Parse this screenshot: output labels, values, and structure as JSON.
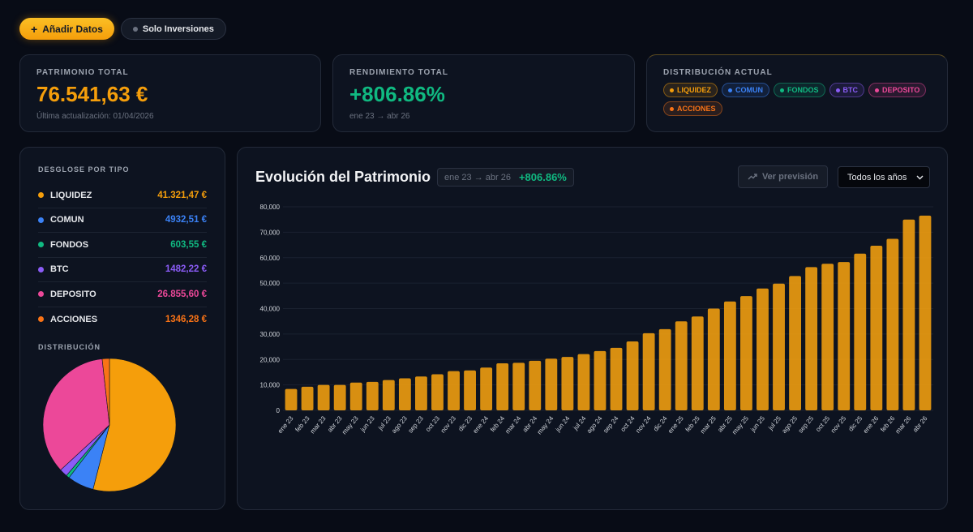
{
  "toolbar": {
    "add_label": "Añadir Datos",
    "solo_label": "Solo Inversiones"
  },
  "kpis": {
    "total": {
      "label": "PATRIMONIO TOTAL",
      "value": "76.541,63 €",
      "sub": "Última actualización: 01/04/2026"
    },
    "rendimiento": {
      "label": "RENDIMIENTO TOTAL",
      "value": "+806.86%",
      "sub": "ene 23 → abr 26"
    },
    "distribucion": {
      "label": "DISTRIBUCIÓN ACTUAL",
      "chips": [
        {
          "label": "LIQUIDEZ",
          "color": "#f59e0b"
        },
        {
          "label": "COMUN",
          "color": "#3b82f6"
        },
        {
          "label": "FONDOS",
          "color": "#10b981"
        },
        {
          "label": "BTC",
          "color": "#8b5cf6"
        },
        {
          "label": "DEPOSITO",
          "color": "#ec4899"
        },
        {
          "label": "ACCIONES",
          "color": "#f97316"
        }
      ]
    }
  },
  "breakdown": {
    "title": "DESGLOSE POR TIPO",
    "rows": [
      {
        "name": "LIQUIDEZ",
        "value": "41.321,47 €",
        "color": "#f59e0b",
        "amount": 41321.47
      },
      {
        "name": "COMUN",
        "value": "4932,51 €",
        "color": "#3b82f6",
        "amount": 4932.51
      },
      {
        "name": "FONDOS",
        "value": "603,55 €",
        "color": "#10b981",
        "amount": 603.55
      },
      {
        "name": "BTC",
        "value": "1482,22 €",
        "color": "#8b5cf6",
        "amount": 1482.22
      },
      {
        "name": "DEPOSITO",
        "value": "26.855,60 €",
        "color": "#ec4899",
        "amount": 26855.6
      },
      {
        "name": "ACCIONES",
        "value": "1346,28 €",
        "color": "#f97316",
        "amount": 1346.28
      }
    ],
    "dist_title": "DISTRIBUCIÓN"
  },
  "chart_panel": {
    "title": "Evolución del Patrimonio",
    "range": "ene 23 → abr 26",
    "pct": "+806.86%",
    "prevision_label": "Ver previsión",
    "years_select": "Todos los años"
  },
  "chart_data": {
    "type": "bar",
    "title": "Evolución del Patrimonio",
    "ylim": [
      0,
      80000
    ],
    "yticks": [
      "0",
      "10,000",
      "20,000",
      "30,000",
      "40,000",
      "50,000",
      "60,000",
      "70,000",
      "80,000"
    ],
    "grid": true,
    "color": "#f5a00f",
    "categories": [
      "ene 23",
      "feb 23",
      "mar 23",
      "abr 23",
      "may 23",
      "jun 23",
      "jul 23",
      "ago 23",
      "sep 23",
      "oct 23",
      "nov 23",
      "dic 23",
      "ene 24",
      "feb 24",
      "mar 24",
      "abr 24",
      "may 24",
      "jun 24",
      "jul 24",
      "ago 24",
      "sep 24",
      "oct 24",
      "nov 24",
      "dic 24",
      "ene 25",
      "feb 25",
      "mar 25",
      "abr 25",
      "may 25",
      "jun 25",
      "jul 25",
      "ago 25",
      "sep 25",
      "oct 25",
      "nov 25",
      "dic 25",
      "ene 26",
      "feb 26",
      "mar 26",
      "abr 26"
    ],
    "values": [
      8400,
      9300,
      10000,
      10000,
      10900,
      11200,
      11900,
      12600,
      13300,
      14200,
      15400,
      15700,
      16800,
      18500,
      18700,
      19500,
      20300,
      21000,
      22100,
      23300,
      24600,
      27100,
      30300,
      31900,
      35000,
      36900,
      40000,
      42800,
      44900,
      47900,
      49800,
      52800,
      56300,
      57600,
      58300,
      61600,
      64700,
      67400,
      75000,
      76541.63
    ]
  }
}
